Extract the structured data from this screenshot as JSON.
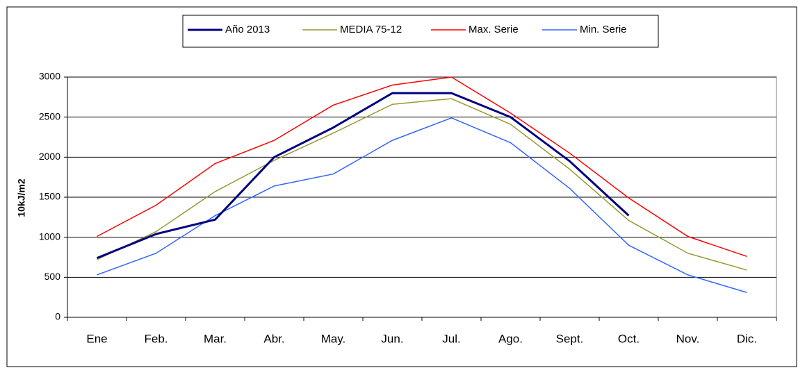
{
  "chart_data": {
    "type": "line",
    "y_label": "10kJ/m2",
    "categories": [
      "Ene",
      "Feb.",
      "Mar.",
      "Abr.",
      "May.",
      "Jun.",
      "Jul.",
      "Ago.",
      "Sept.",
      "Oct.",
      "Nov.",
      "Dic."
    ],
    "series": [
      {
        "name": "Año 2013",
        "color": "#000080",
        "width": 3,
        "values": [
          740,
          1040,
          1220,
          2000,
          2370,
          2800,
          2800,
          2500,
          1950,
          1270,
          null,
          null
        ]
      },
      {
        "name": "MEDIA 75-12",
        "color": "#999933",
        "width": 1.5,
        "values": [
          720,
          1070,
          1570,
          1960,
          2300,
          2660,
          2730,
          2410,
          1850,
          1210,
          800,
          590
        ]
      },
      {
        "name": "Max. Serie",
        "color": "#ff0000",
        "width": 1.5,
        "values": [
          1010,
          1400,
          1920,
          2210,
          2650,
          2900,
          3000,
          2550,
          2050,
          1490,
          1010,
          760
        ]
      },
      {
        "name": "Min. Serie",
        "color": "#3366ff",
        "width": 1.5,
        "values": [
          530,
          800,
          1270,
          1640,
          1790,
          2210,
          2490,
          2180,
          1610,
          900,
          530,
          310
        ]
      }
    ],
    "ylim": [
      0,
      3000
    ],
    "yticks": [
      0,
      500,
      1000,
      1500,
      2000,
      2500,
      3000
    ],
    "grid": true,
    "legend": "top"
  }
}
